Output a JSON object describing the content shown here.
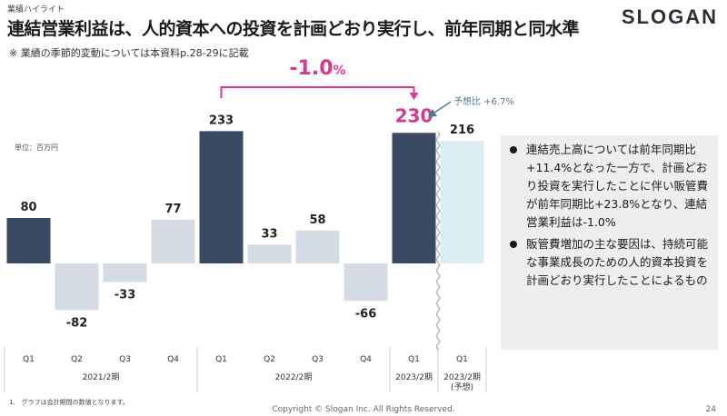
{
  "header": {
    "section_label": "業績ハイライト",
    "title": "連結営業利益は、人的資本への投資を計画どおり実行し、前年同期と同水準",
    "logo": "SLOGAN"
  },
  "note": "※ 業績の季節的変動については本資料p.28-29に記載",
  "colors": {
    "actual_bar": "#3b4a63",
    "negative_bar": "#d5dbe5",
    "forecast_bar": "#dcecf3",
    "accent": "#d6398f",
    "arrow": "#4f7b93"
  },
  "chart_data": {
    "type": "bar",
    "unit_label": "単位：百万円",
    "categories": [
      "Q1",
      "Q2",
      "Q3",
      "Q4",
      "Q1",
      "Q2",
      "Q3",
      "Q4",
      "Q1",
      "Q1"
    ],
    "values": [
      80,
      -82,
      -33,
      77,
      233,
      33,
      58,
      -66,
      230,
      216
    ],
    "value_labels": [
      "80",
      "-82",
      "-33",
      "77",
      "233",
      "33",
      "58",
      "-66",
      "230",
      "216"
    ],
    "period_groups": [
      {
        "label": "2021/2期"
      },
      {
        "label": "2022/2期"
      },
      {
        "label": "2023/2期"
      },
      {
        "label": "2023/2期\n(予想)"
      }
    ],
    "comparison": {
      "label": "-1.0",
      "unit": "%"
    },
    "forecast_comparison": "予想比 +6.7%"
  },
  "bullets": [
    "連結売上高については前年同期比+11.4%となった一方で、計画どおり投資を実行したことに伴い販管費が前年同期比+23.8%となり、連結営業利益は-1.0%",
    "販管費増加の主な要因は、持続可能な事業成長のための人的資本投資を計画どおり実行したことによるもの"
  ],
  "footnote": "1.　グラフは会計期間の数値となります。",
  "footer": {
    "copyright": "Copyright © Slogan Inc. All Rights Reserved.",
    "page": "24"
  }
}
